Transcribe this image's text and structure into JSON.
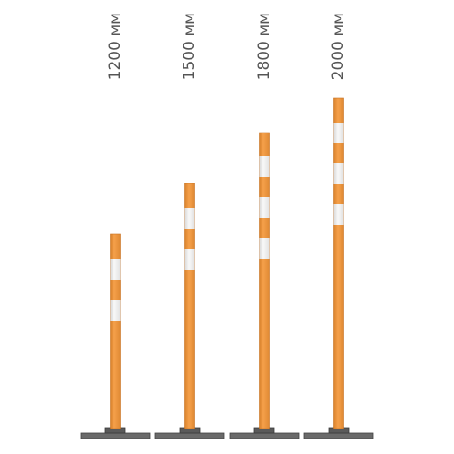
{
  "posts": [
    {
      "label": "1200 мм"
    },
    {
      "label": "1500 мм"
    },
    {
      "label": "1800 мм"
    },
    {
      "label": "2000 мм"
    }
  ]
}
